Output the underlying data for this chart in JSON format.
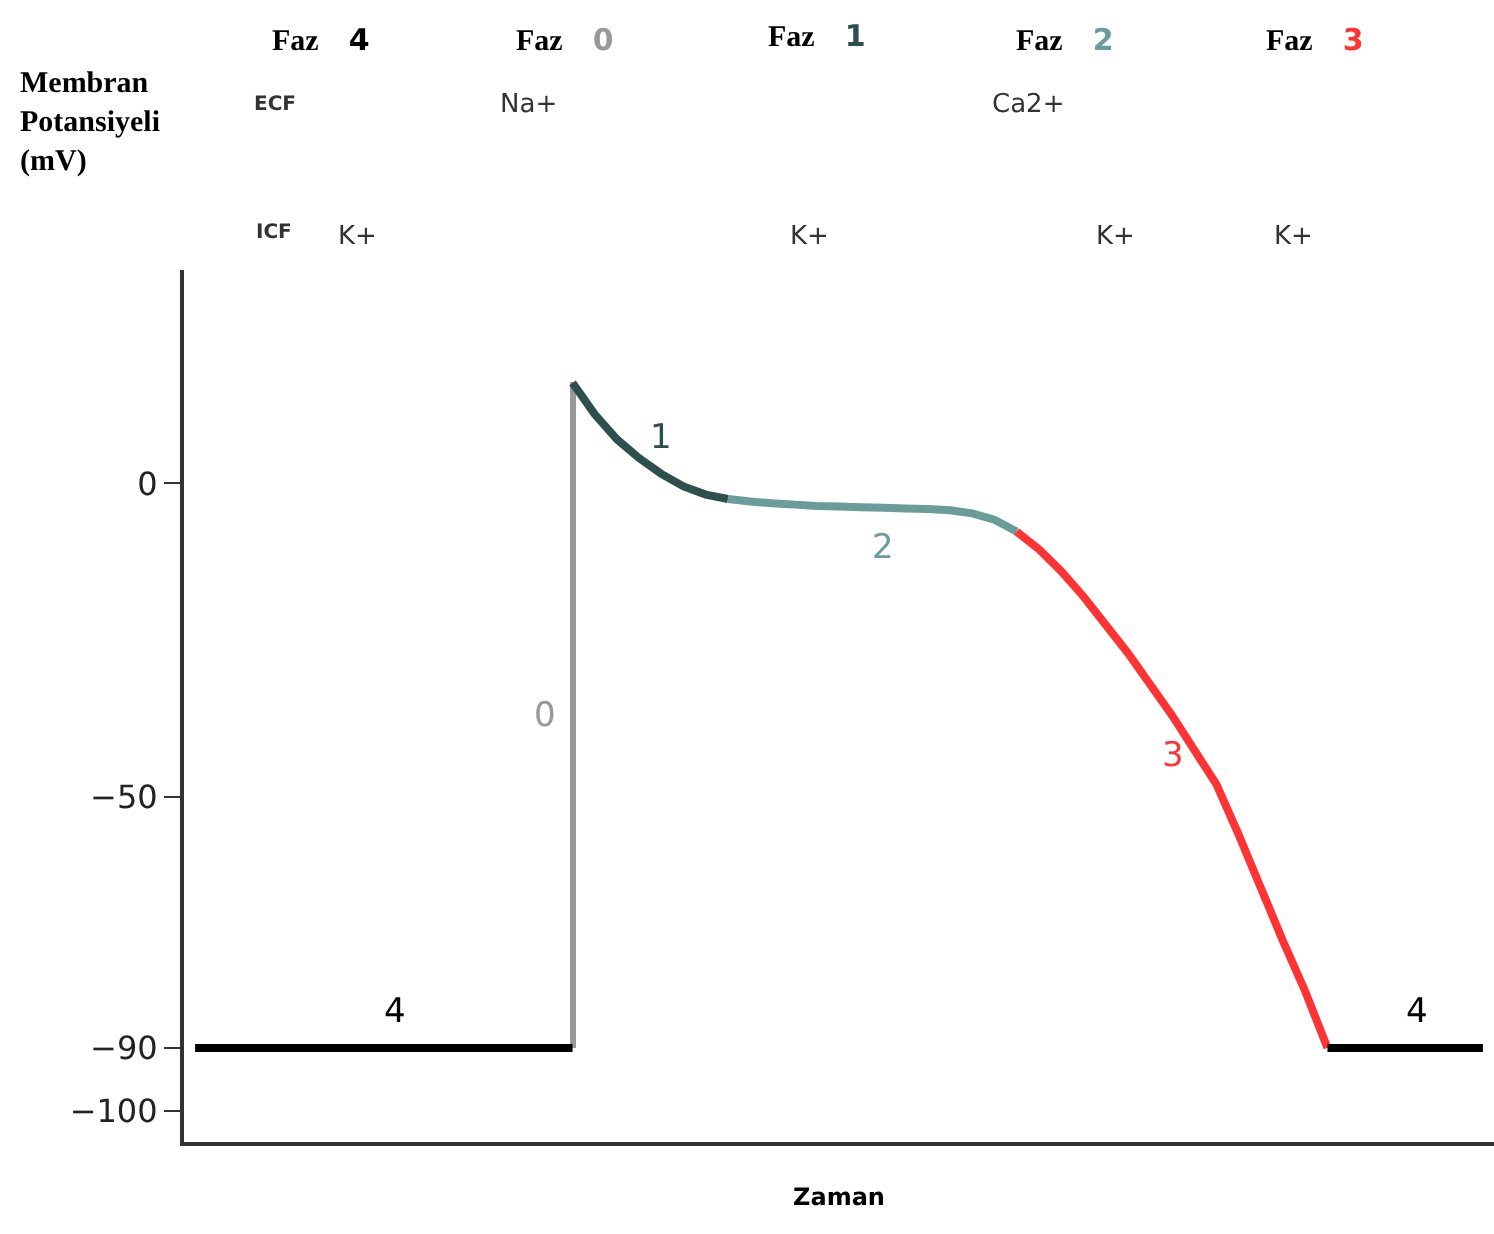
{
  "chart_data": {
    "type": "line",
    "xlabel": "Zaman",
    "ylabel": "Membran Potansiyeli (mV)",
    "categories": [
      null,
      null,
      null,
      null,
      null,
      null,
      null,
      null,
      null,
      null,
      null,
      null,
      null,
      null,
      null,
      null,
      null,
      null,
      null,
      null,
      null,
      null,
      null,
      null,
      null,
      null,
      null,
      null,
      null,
      null,
      null,
      null,
      null,
      null,
      null,
      null,
      null,
      null,
      null,
      null,
      null,
      null,
      null,
      null,
      null,
      null,
      null,
      null,
      null,
      null,
      null,
      null,
      null,
      null,
      null,
      null,
      null,
      null,
      null
    ],
    "series": [
      {
        "name": "4",
        "color": "#000000",
        "values": [
          -90,
          -90,
          -90,
          -90,
          -90,
          -90,
          -90,
          -90,
          -90,
          -90,
          -90,
          -90,
          -90,
          -90,
          -90,
          -90,
          -90,
          -90,
          null,
          null,
          null,
          null,
          null,
          null,
          null,
          null,
          null,
          null,
          null,
          null,
          null,
          null,
          null,
          null,
          null,
          null,
          null,
          null,
          null,
          null,
          null,
          null,
          null,
          null,
          null,
          null,
          null,
          null,
          null,
          null,
          null,
          null,
          null,
          null,
          null,
          null,
          null,
          null,
          null
        ]
      },
      {
        "name": "0",
        "color": "#999999",
        "type": "bar",
        "base": [
          null,
          null,
          null,
          null,
          null,
          null,
          null,
          null,
          null,
          null,
          null,
          null,
          null,
          null,
          null,
          null,
          null,
          -90,
          null,
          null,
          null,
          null,
          null,
          null,
          null,
          null,
          null,
          null,
          null,
          null,
          null,
          null,
          null,
          null,
          null,
          null,
          null,
          null,
          null,
          null,
          null,
          null,
          null,
          null,
          null,
          null,
          null,
          null,
          null,
          null,
          null,
          null,
          null,
          null,
          null,
          null,
          null,
          null,
          null
        ],
        "values": [
          null,
          null,
          null,
          null,
          null,
          null,
          null,
          null,
          null,
          null,
          null,
          null,
          null,
          null,
          null,
          null,
          null,
          106,
          null,
          null,
          null,
          null,
          null,
          null,
          null,
          null,
          null,
          null,
          null,
          null,
          null,
          null,
          null,
          null,
          null,
          null,
          null,
          null,
          null,
          null,
          null,
          null,
          null,
          null,
          null,
          null,
          null,
          null,
          null,
          null,
          null,
          null,
          null,
          null,
          null,
          null,
          null,
          null,
          null
        ]
      },
      {
        "name": "1",
        "color": "#2d4f4e",
        "values": [
          null,
          null,
          null,
          null,
          null,
          null,
          null,
          null,
          null,
          null,
          null,
          null,
          null,
          null,
          null,
          null,
          null,
          16,
          11,
          7,
          4,
          1.5,
          -0.5,
          -1.8,
          -2.5,
          null,
          null,
          null,
          null,
          null,
          null,
          null,
          null,
          null,
          null,
          null,
          null,
          null,
          null,
          null,
          null,
          null,
          null,
          null,
          null,
          null,
          null,
          null,
          null,
          null,
          null,
          null,
          null,
          null,
          null,
          null,
          null,
          null,
          null
        ]
      },
      {
        "name": "2",
        "color": "#6a9c9a",
        "values": [
          null,
          null,
          null,
          null,
          null,
          null,
          null,
          null,
          null,
          null,
          null,
          null,
          null,
          null,
          null,
          null,
          null,
          null,
          null,
          null,
          null,
          null,
          null,
          null,
          -2.5,
          -2.9,
          -3.2,
          -3.4,
          -3.6,
          -3.7,
          -3.8,
          -3.9,
          -4.0,
          -4.1,
          -4.3,
          -4.8,
          -5.8,
          -7.7,
          null,
          null,
          null,
          null,
          null,
          null,
          null,
          null,
          null,
          null,
          null,
          null,
          null,
          null,
          null,
          null,
          null,
          null,
          null,
          null,
          null
        ]
      },
      {
        "name": "3",
        "color": "#ff3333",
        "values": [
          null,
          null,
          null,
          null,
          null,
          null,
          null,
          null,
          null,
          null,
          null,
          null,
          null,
          null,
          null,
          null,
          null,
          null,
          null,
          null,
          null,
          null,
          null,
          null,
          null,
          null,
          null,
          null,
          null,
          null,
          null,
          null,
          null,
          null,
          null,
          null,
          null,
          -7.7,
          -10.5,
          -14,
          -18,
          -22.5,
          -27,
          -32,
          -37,
          -42.5,
          -48,
          -56,
          -64.5,
          -73,
          -81,
          -90,
          null,
          null,
          null,
          null,
          null,
          null,
          null
        ]
      },
      {
        "name": "4",
        "color": "#000000",
        "values": [
          null,
          null,
          null,
          null,
          null,
          null,
          null,
          null,
          null,
          null,
          null,
          null,
          null,
          null,
          null,
          null,
          null,
          null,
          null,
          null,
          null,
          null,
          null,
          null,
          null,
          null,
          null,
          null,
          null,
          null,
          null,
          null,
          null,
          null,
          null,
          null,
          null,
          null,
          null,
          null,
          null,
          null,
          null,
          null,
          null,
          null,
          null,
          null,
          null,
          null,
          null,
          -90,
          -90,
          -90,
          -90,
          -90,
          -90,
          -90,
          -90
        ]
      }
    ],
    "annotations": [
      "Faz 4",
      "Faz 0",
      "Faz 1",
      "Faz 2",
      "Faz 3",
      "ECF",
      "ICF",
      "Na+",
      "K+",
      "K+",
      "Ca2+",
      "K+",
      "K+"
    ],
    "ylim": [
      -105,
      34
    ],
    "yticks": [
      0,
      {
        "value": -50,
        "label": "−50"
      },
      {
        "value": -90,
        "label": "−90"
      },
      {
        "value": -100,
        "label": "−100"
      }
    ],
    "tick_labels": "y",
    "legend": false,
    "line_style": "solid",
    "marker": "none"
  }
}
